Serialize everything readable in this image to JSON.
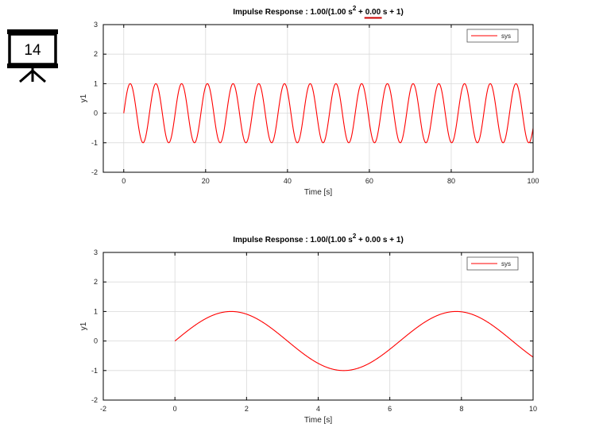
{
  "slide_badge": {
    "number": "14",
    "icon": "presentation-board-icon"
  },
  "colors": {
    "series": "#ff0000",
    "annotation": "#cc0000",
    "grid": "#d9d9d9",
    "axis": "#000000"
  },
  "chart_data": [
    {
      "type": "line",
      "title": {
        "prefix": "Impulse Response : 1.00/(1.00 s",
        "exponent": "2",
        "middle": " + ",
        "damping": "0.00",
        "suffix": " s + 1)"
      },
      "damping_underlined": true,
      "xlabel": "Time [s]",
      "ylabel": "y1",
      "xlim": [
        -5,
        100
      ],
      "ylim": [
        -2,
        3
      ],
      "xticks": [
        0,
        20,
        40,
        60,
        80,
        100
      ],
      "yticks": [
        -2,
        -1,
        0,
        1,
        2,
        3
      ],
      "grid": true,
      "legend": {
        "position": "top-right",
        "entries": [
          "sys"
        ]
      },
      "series": [
        {
          "name": "sys",
          "function": "sin(t)",
          "t_start": 0,
          "t_end": 100,
          "color": "#ff0000"
        }
      ]
    },
    {
      "type": "line",
      "title": {
        "prefix": "Impulse Response : 1.00/(1.00 s",
        "exponent": "2",
        "middle": " + ",
        "damping": "0.00",
        "suffix": " s + 1)"
      },
      "damping_underlined": false,
      "xlabel": "Time [s]",
      "ylabel": "y1",
      "xlim": [
        -2,
        10
      ],
      "ylim": [
        -2,
        3
      ],
      "xticks": [
        -2,
        0,
        2,
        4,
        6,
        8,
        10
      ],
      "yticks": [
        -2,
        -1,
        0,
        1,
        2,
        3
      ],
      "grid": true,
      "legend": {
        "position": "top-right",
        "entries": [
          "sys"
        ]
      },
      "series": [
        {
          "name": "sys",
          "function": "sin(t)",
          "t_start": 0,
          "t_end": 10,
          "color": "#ff0000"
        }
      ]
    }
  ]
}
